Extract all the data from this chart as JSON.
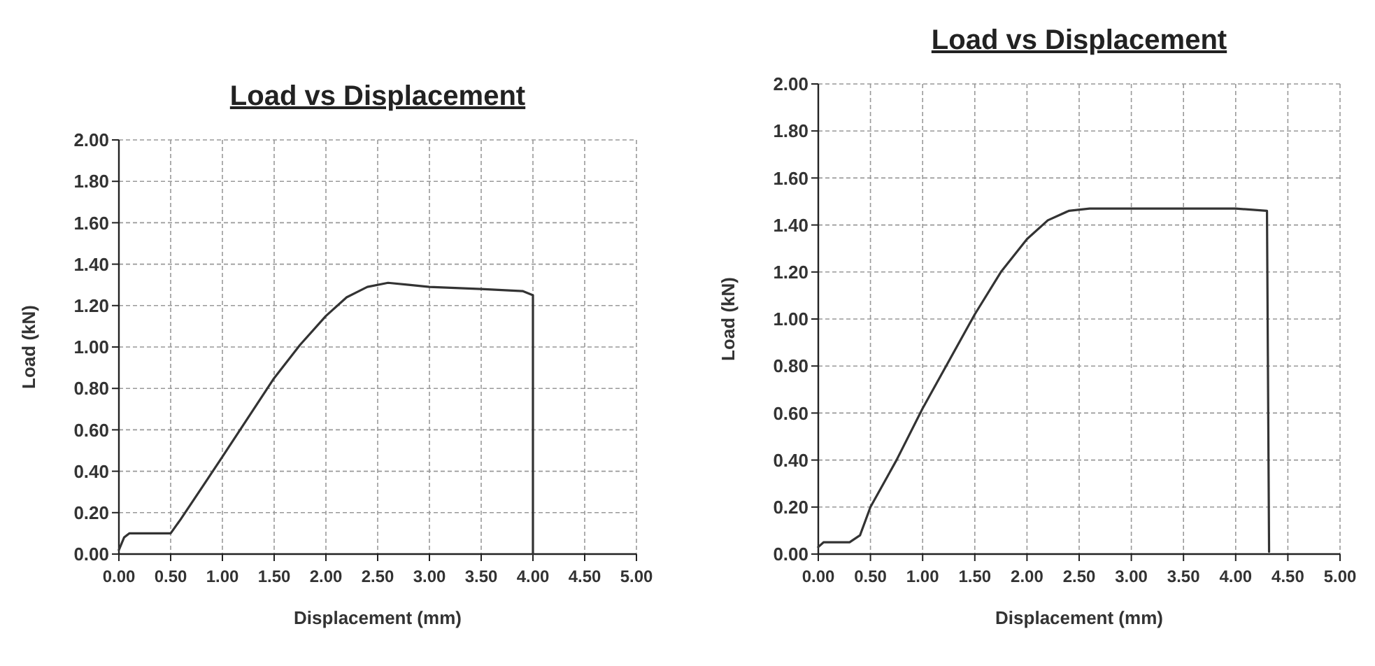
{
  "chart_data": [
    {
      "type": "line",
      "title": "Load vs Displacement",
      "xlabel": "Displacement (mm)",
      "ylabel": "Load (kN)",
      "grid": true,
      "line_style": "solid",
      "xlim": [
        0,
        5
      ],
      "ylim": [
        0,
        2
      ],
      "xticks": [
        {
          "value": 0,
          "label": "0.00"
        },
        {
          "value": 0.5,
          "label": "0.50"
        },
        {
          "value": 1,
          "label": "1.00"
        },
        {
          "value": 1.5,
          "label": "1.50"
        },
        {
          "value": 2,
          "label": "2.00"
        },
        {
          "value": 2.5,
          "label": "2.50"
        },
        {
          "value": 3,
          "label": "3.00"
        },
        {
          "value": 3.5,
          "label": "3.50"
        },
        {
          "value": 4,
          "label": "4.00"
        },
        {
          "value": 4.5,
          "label": "4.50"
        },
        {
          "value": 5,
          "label": "5.00"
        }
      ],
      "yticks": [
        {
          "value": 0,
          "label": "0.00"
        },
        {
          "value": 0.2,
          "label": "0.20"
        },
        {
          "value": 0.4,
          "label": "0.40"
        },
        {
          "value": 0.6,
          "label": "0.60"
        },
        {
          "value": 0.8,
          "label": "0.80"
        },
        {
          "value": 1,
          "label": "1.00"
        },
        {
          "value": 1.2,
          "label": "1.20"
        },
        {
          "value": 1.4,
          "label": "1.40"
        },
        {
          "value": 1.6,
          "label": "1.60"
        },
        {
          "value": 1.8,
          "label": "1.80"
        },
        {
          "value": 2,
          "label": "2.00"
        }
      ],
      "series": [
        {
          "color": "#333333",
          "x": [
            0,
            0.05,
            0.1,
            0.3,
            0.5,
            0.6,
            0.8,
            1.0,
            1.25,
            1.5,
            1.75,
            2.0,
            2.2,
            2.4,
            2.6,
            2.8,
            3.0,
            3.5,
            3.9,
            4.0,
            4.0
          ],
          "values": [
            0.02,
            0.08,
            0.1,
            0.1,
            0.1,
            0.17,
            0.32,
            0.47,
            0.66,
            0.85,
            1.01,
            1.15,
            1.24,
            1.29,
            1.31,
            1.3,
            1.29,
            1.28,
            1.27,
            1.25,
            0
          ]
        }
      ]
    },
    {
      "type": "line",
      "title": "Load vs Displacement",
      "xlabel": "Displacement (mm)",
      "ylabel": "Load (kN)",
      "grid": true,
      "line_style": "solid",
      "xlim": [
        0,
        5
      ],
      "ylim": [
        0,
        2
      ],
      "xticks": [
        {
          "value": 0,
          "label": "0.00"
        },
        {
          "value": 0.5,
          "label": "0.50"
        },
        {
          "value": 1,
          "label": "1.00"
        },
        {
          "value": 1.5,
          "label": "1.50"
        },
        {
          "value": 2,
          "label": "2.00"
        },
        {
          "value": 2.5,
          "label": "2.50"
        },
        {
          "value": 3,
          "label": "3.00"
        },
        {
          "value": 3.5,
          "label": "3.50"
        },
        {
          "value": 4,
          "label": "4.00"
        },
        {
          "value": 4.5,
          "label": "4.50"
        },
        {
          "value": 5,
          "label": "5.00"
        }
      ],
      "yticks": [
        {
          "value": 0,
          "label": "0.00"
        },
        {
          "value": 0.2,
          "label": "0.20"
        },
        {
          "value": 0.4,
          "label": "0.40"
        },
        {
          "value": 0.6,
          "label": "0.60"
        },
        {
          "value": 0.8,
          "label": "0.80"
        },
        {
          "value": 1,
          "label": "1.00"
        },
        {
          "value": 1.2,
          "label": "1.20"
        },
        {
          "value": 1.4,
          "label": "1.40"
        },
        {
          "value": 1.6,
          "label": "1.60"
        },
        {
          "value": 1.8,
          "label": "1.80"
        },
        {
          "value": 2,
          "label": "2.00"
        }
      ],
      "series": [
        {
          "color": "#333333",
          "x": [
            0,
            0.05,
            0.3,
            0.4,
            0.5,
            0.75,
            1.0,
            1.25,
            1.5,
            1.75,
            2.0,
            2.2,
            2.4,
            2.6,
            3.0,
            3.5,
            4.0,
            4.3,
            4.32
          ],
          "values": [
            0.03,
            0.05,
            0.05,
            0.08,
            0.2,
            0.4,
            0.62,
            0.82,
            1.02,
            1.2,
            1.34,
            1.42,
            1.46,
            1.47,
            1.47,
            1.47,
            1.47,
            1.46,
            0.01
          ]
        }
      ]
    }
  ]
}
